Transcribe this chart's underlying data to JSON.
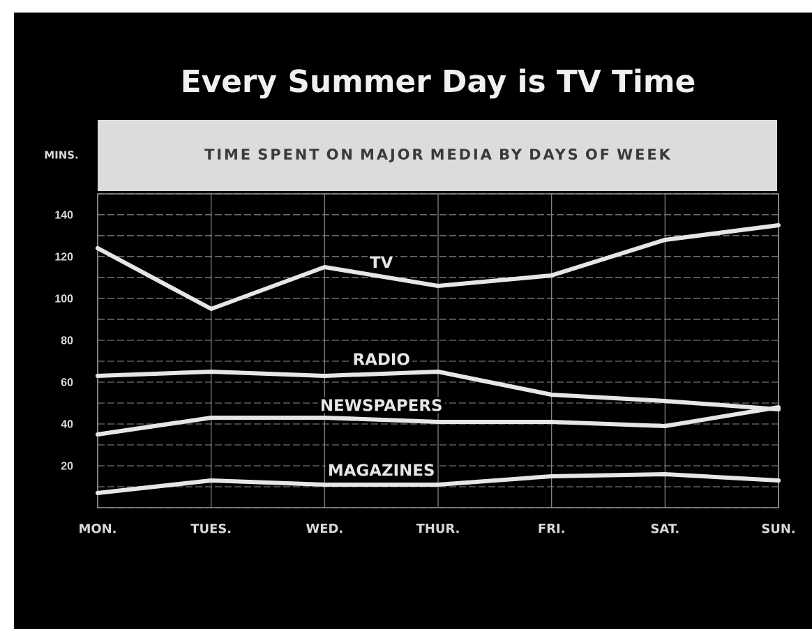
{
  "chart_data": {
    "type": "line",
    "title": "Every Summer Day is TV Time",
    "subtitle": "TIME SPENT ON MAJOR MEDIA BY DAYS OF WEEK",
    "ylabel": "MINS.",
    "categories": [
      "MON.",
      "TUES.",
      "WED.",
      "THUR.",
      "FRI.",
      "SAT.",
      "SUN."
    ],
    "series": [
      {
        "name": "TV",
        "color": "#e6e6e6",
        "values": [
          124,
          95,
          115,
          106,
          111,
          128,
          135
        ]
      },
      {
        "name": "RADIO",
        "color": "#e6e6e6",
        "values": [
          63,
          65,
          63,
          65,
          54,
          51,
          47
        ]
      },
      {
        "name": "NEWSPAPERS",
        "color": "#e6e6e6",
        "values": [
          35,
          43,
          43,
          41,
          41,
          39,
          48
        ]
      },
      {
        "name": "MAGAZINES",
        "color": "#e6e6e6",
        "values": [
          7,
          13,
          11,
          11,
          15,
          16,
          13
        ]
      }
    ],
    "ylim": [
      0,
      150
    ],
    "yticks": [
      {
        "value": 0,
        "label": null
      },
      {
        "value": 10,
        "label": null
      },
      20,
      {
        "value": 30,
        "label": null
      },
      40,
      {
        "value": 50,
        "label": null
      },
      60,
      {
        "value": 70,
        "label": null
      },
      80,
      {
        "value": 90,
        "label": null
      },
      100,
      {
        "value": 110,
        "label": null
      },
      120,
      {
        "value": 130,
        "label": null
      },
      140,
      {
        "value": 150,
        "label": null
      }
    ],
    "grid": true,
    "marker": "none",
    "line_style": "solid"
  }
}
